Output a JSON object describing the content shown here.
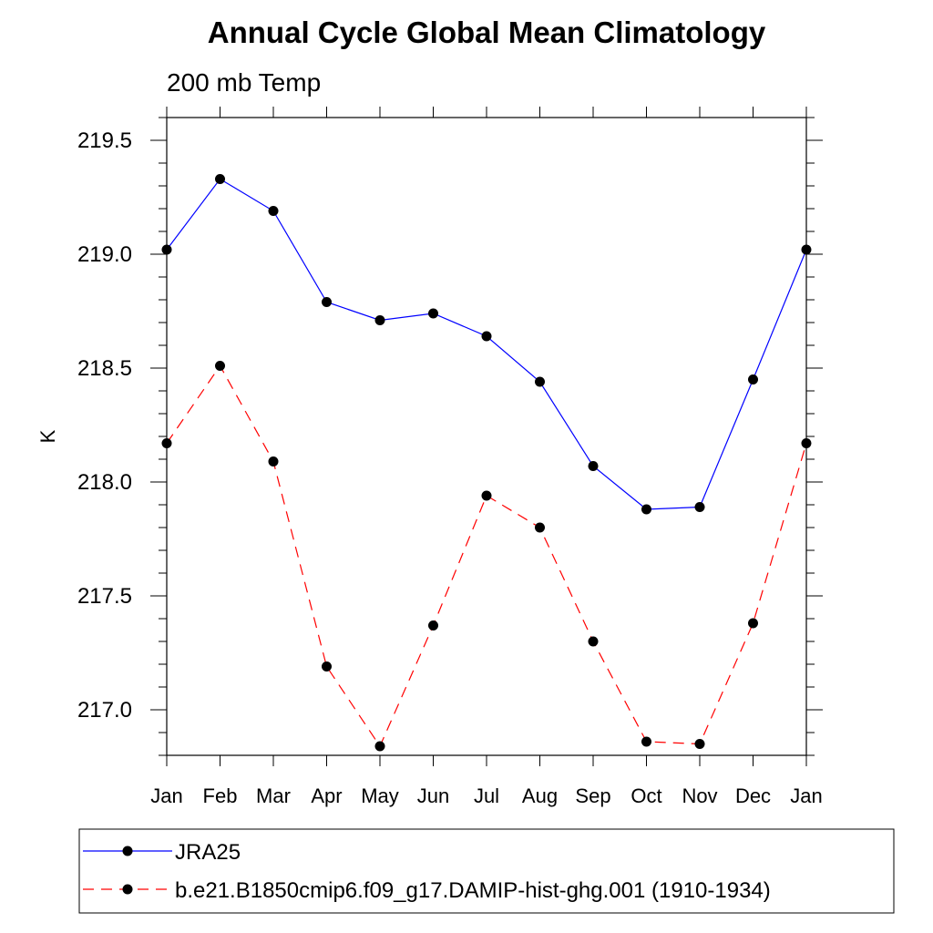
{
  "chart_data": {
    "type": "line",
    "title": "Annual Cycle Global Mean Climatology",
    "subtitle": "200 mb Temp",
    "xlabel": "",
    "ylabel": "K",
    "categories": [
      "Jan",
      "Feb",
      "Mar",
      "Apr",
      "May",
      "Jun",
      "Jul",
      "Aug",
      "Sep",
      "Oct",
      "Nov",
      "Dec",
      "Jan"
    ],
    "ylim": [
      216.8,
      219.6
    ],
    "yticks": [
      217.0,
      217.5,
      218.0,
      218.5,
      219.0,
      219.5
    ],
    "ytick_labels": [
      "217.0",
      "217.5",
      "218.0",
      "218.5",
      "219.0",
      "219.5"
    ],
    "grid": false,
    "legend_position": "bottom",
    "series": [
      {
        "name": "JRA25",
        "color": "#0000ff",
        "dash": "solid",
        "marker": "filled-circle",
        "values": [
          219.02,
          219.33,
          219.19,
          218.79,
          218.71,
          218.74,
          218.64,
          218.44,
          218.07,
          217.88,
          217.89,
          218.45,
          219.02
        ]
      },
      {
        "name": "b.e21.B1850cmip6.f09_g17.DAMIP-hist-ghg.001 (1910-1934)",
        "color": "#ff0000",
        "dash": "dashed",
        "marker": "filled-circle",
        "values": [
          218.17,
          218.51,
          218.09,
          217.19,
          216.84,
          217.37,
          217.94,
          217.8,
          217.3,
          216.86,
          216.85,
          217.38,
          218.17
        ]
      }
    ]
  }
}
